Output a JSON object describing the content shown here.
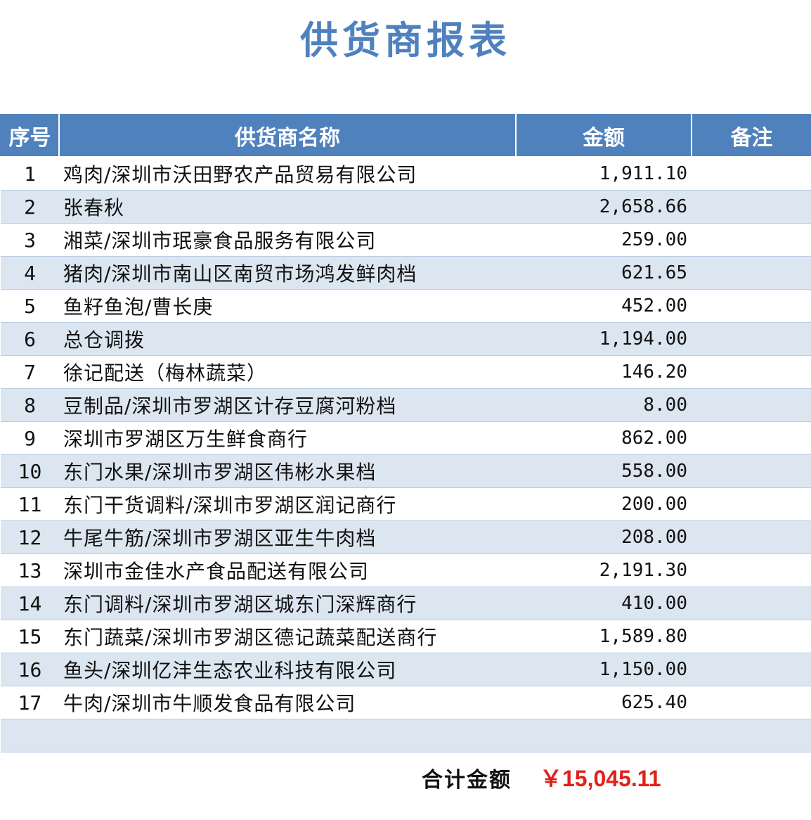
{
  "title": "供货商报表",
  "table": {
    "headers": [
      "序号",
      "供货商名称",
      "金额",
      "备注"
    ],
    "rows": [
      {
        "index": "1",
        "name": "鸡肉/深圳市沃田野农产品贸易有限公司",
        "amount": "1,911.10",
        "note": ""
      },
      {
        "index": "2",
        "name": "张春秋",
        "amount": "2,658.66",
        "note": ""
      },
      {
        "index": "3",
        "name": "湘菜/深圳市珉豪食品服务有限公司",
        "amount": "259.00",
        "note": ""
      },
      {
        "index": "4",
        "name": "猪肉/深圳市南山区南贸市场鸿发鲜肉档",
        "amount": "621.65",
        "note": ""
      },
      {
        "index": "5",
        "name": "鱼籽鱼泡/曹长庚",
        "amount": "452.00",
        "note": ""
      },
      {
        "index": "6",
        "name": "总仓调拨",
        "amount": "1,194.00",
        "note": ""
      },
      {
        "index": "7",
        "name": "徐记配送（梅林蔬菜）",
        "amount": "146.20",
        "note": ""
      },
      {
        "index": "8",
        "name": "豆制品/深圳市罗湖区计存豆腐河粉档",
        "amount": "8.00",
        "note": ""
      },
      {
        "index": "9",
        "name": "深圳市罗湖区万生鲜食商行",
        "amount": "862.00",
        "note": ""
      },
      {
        "index": "10",
        "name": "东门水果/深圳市罗湖区伟彬水果档",
        "amount": "558.00",
        "note": ""
      },
      {
        "index": "11",
        "name": "东门干货调料/深圳市罗湖区润记商行",
        "amount": "200.00",
        "note": ""
      },
      {
        "index": "12",
        "name": "牛尾牛筋/深圳市罗湖区亚生牛肉档",
        "amount": "208.00",
        "note": ""
      },
      {
        "index": "13",
        "name": "深圳市金佳水产食品配送有限公司",
        "amount": "2,191.30",
        "note": ""
      },
      {
        "index": "14",
        "name": "东门调料/深圳市罗湖区城东门深辉商行",
        "amount": "410.00",
        "note": ""
      },
      {
        "index": "15",
        "name": "东门蔬菜/深圳市罗湖区德记蔬菜配送商行",
        "amount": "1,589.80",
        "note": ""
      },
      {
        "index": "16",
        "name": "鱼头/深圳亿沣生态农业科技有限公司",
        "amount": "1,150.00",
        "note": ""
      },
      {
        "index": "17",
        "name": "牛肉/深圳市牛顺发食品有限公司",
        "amount": "625.40",
        "note": ""
      },
      {
        "index": "",
        "name": "",
        "amount": "",
        "note": ""
      }
    ]
  },
  "total": {
    "label": "合计金额",
    "value": "￥15,045.11"
  },
  "colors": {
    "header_bg": "#4F81BD",
    "band": "#DCE6F1",
    "total_value": "#E0211A"
  }
}
